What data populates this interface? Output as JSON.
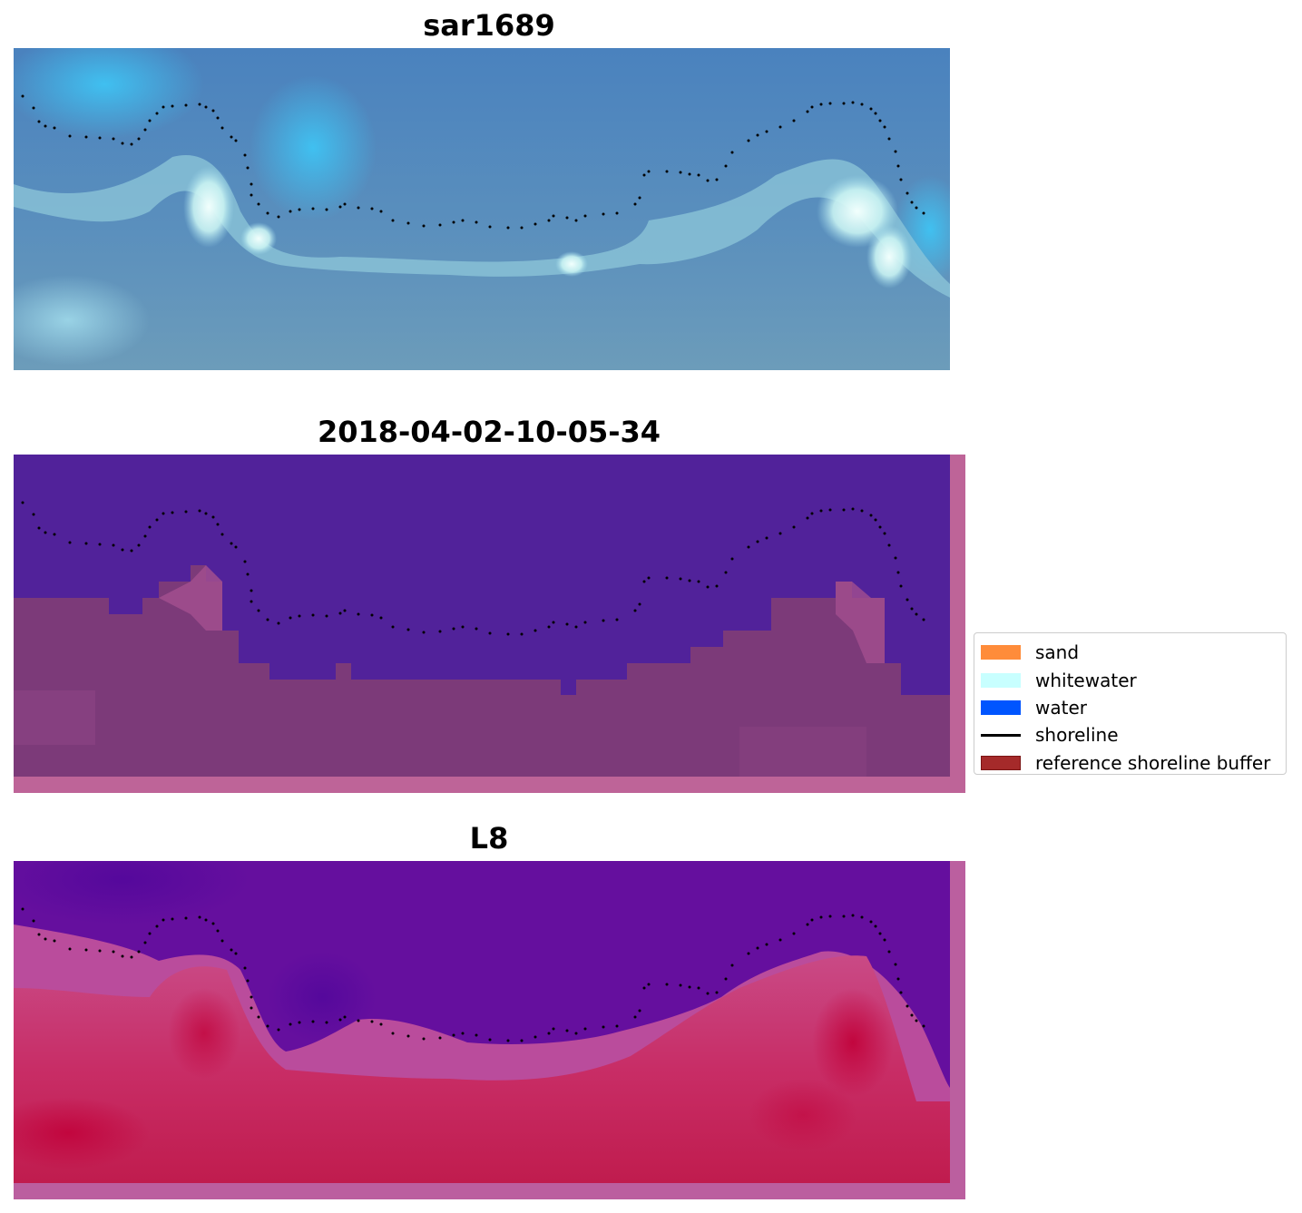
{
  "panels": [
    {
      "title": "sar1689",
      "image": "rgb satellite tile",
      "colors": {
        "base": "#4a82be",
        "deep": "#3e78b8",
        "light": "#3fc3f3",
        "surf": "#d8fbf7",
        "nearshore": "#6e9ec0",
        "shallow": "#7fb8c8"
      }
    },
    {
      "title": "2018-04-02-10-05-34",
      "image": "classified tile",
      "colors": {
        "water": "#51229a",
        "land": "#7c3a79",
        "land_light": "#a24f8e",
        "buffer": "#be6498",
        "peak": "#c267a0"
      }
    },
    {
      "title": "L8",
      "image": "mndwi tile",
      "colors": {
        "water": "#650f9e",
        "water_dark": "#55089c",
        "edge": "#ba4c9c",
        "land": "#c82d66",
        "land_dark": "#c2063e",
        "buffer": "#bb5f9f"
      }
    }
  ],
  "legend": {
    "items": [
      {
        "label": "sand",
        "color": "#ff8c3a",
        "kind": "patch"
      },
      {
        "label": "whitewater",
        "color": "#c8ffff",
        "kind": "patch"
      },
      {
        "label": "water",
        "color": "#0055ff",
        "kind": "patch"
      },
      {
        "label": "shoreline",
        "color": "#000000",
        "kind": "line"
      },
      {
        "label": "reference shoreline buffer",
        "color": "#a52a2a",
        "edge": "#7a1414",
        "kind": "patch"
      }
    ]
  }
}
